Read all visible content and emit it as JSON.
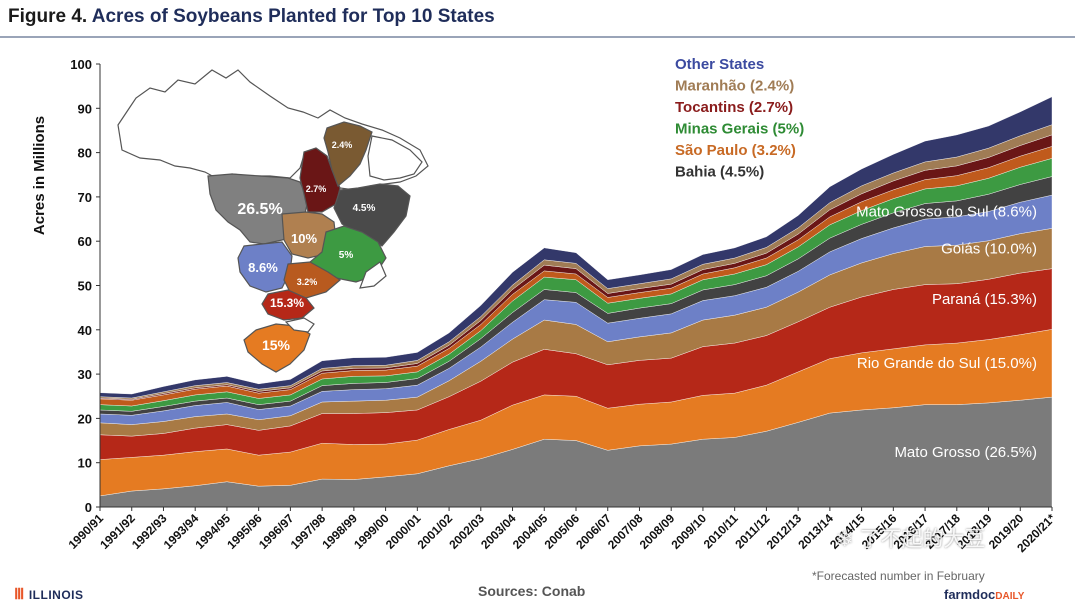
{
  "header": {
    "figure_number": "Figure 4.",
    "title": "Acres of Soybeans Planted for Top 10 States"
  },
  "footer": {
    "university": "ILLINOIS",
    "sources": "Sources: Conab",
    "forecast_note": "*Forecasted number in February",
    "brand_main": "farmdoc",
    "brand_sub": "DAILY"
  },
  "watermark": "了不起的大豆",
  "chart_data": {
    "type": "area",
    "stacked": true,
    "title": "Acres of Soybeans Planted for Top 10 States",
    "xlabel": "",
    "ylabel": "Acres in Millions",
    "ylim": [
      0,
      100
    ],
    "yticks": [
      0,
      10,
      20,
      30,
      40,
      50,
      60,
      70,
      80,
      90,
      100
    ],
    "grid": false,
    "categories": [
      "1990/91",
      "1991/92",
      "1992/93",
      "1993/94",
      "1994/95",
      "1995/96",
      "1996/97",
      "1997/98",
      "1998/99",
      "1999/00",
      "2000/01",
      "2001/02",
      "2002/03",
      "2003/04",
      "2004/05",
      "2005/06",
      "2006/07",
      "2007/08",
      "2008/09",
      "2009/10",
      "2010/11",
      "2011/12",
      "2012/13",
      "2013/14",
      "2014/15",
      "2015/16",
      "2016/17",
      "2017/18",
      "2018/19",
      "2019/20",
      "2020/21*"
    ],
    "series": [
      {
        "name": "Mato Grosso",
        "label": "Mato Grosso  (26.5%)",
        "color": "#7b7b7b",
        "values": [
          2.5,
          3.6,
          4.1,
          4.8,
          5.7,
          4.7,
          4.9,
          6.3,
          6.2,
          6.8,
          7.5,
          9.3,
          10.9,
          13.0,
          15.3,
          15.0,
          12.8,
          13.8,
          14.2,
          15.3,
          15.7,
          17.1,
          19.1,
          21.2,
          21.9,
          22.4,
          23.1,
          23.1,
          23.5,
          24.1,
          24.8
        ]
      },
      {
        "name": "Rio Grande do Sul",
        "label": "Rio Grande do Sul (15.0%)",
        "color": "#e57b22",
        "values": [
          8.2,
          7.6,
          7.6,
          7.7,
          7.4,
          7.0,
          7.5,
          8.1,
          7.9,
          7.4,
          7.6,
          8.2,
          8.7,
          10.0,
          10.0,
          10.0,
          9.5,
          9.4,
          9.5,
          9.9,
          10.0,
          10.4,
          11.4,
          12.3,
          12.9,
          13.3,
          13.5,
          13.9,
          14.3,
          14.8,
          15.3
        ]
      },
      {
        "name": "Paraná",
        "label": "Paraná (15.3%)",
        "color": "#b52818",
        "values": [
          5.6,
          4.8,
          4.9,
          5.3,
          5.5,
          5.6,
          5.9,
          6.7,
          7.0,
          7.1,
          6.8,
          7.4,
          8.8,
          9.7,
          10.3,
          9.6,
          9.8,
          9.9,
          9.9,
          11.0,
          11.3,
          11.2,
          11.3,
          11.6,
          12.6,
          13.4,
          13.6,
          13.4,
          13.6,
          13.9,
          13.7
        ]
      },
      {
        "name": "Goiás",
        "label": "Goiás  (10.0%)",
        "color": "#a87a45",
        "values": [
          2.7,
          2.6,
          2.7,
          2.6,
          2.4,
          2.4,
          2.3,
          2.6,
          2.8,
          2.8,
          2.9,
          3.6,
          4.5,
          5.2,
          6.6,
          6.6,
          5.2,
          5.3,
          5.7,
          6.0,
          6.3,
          6.4,
          6.7,
          7.3,
          7.7,
          8.1,
          8.6,
          8.7,
          8.7,
          8.9,
          9.1
        ]
      },
      {
        "name": "Mato Grosso do Sul",
        "label": "Mato Grosso  do Sul (8.6%)",
        "color": "#6d80c7",
        "values": [
          2.0,
          2.1,
          2.4,
          2.5,
          2.6,
          2.3,
          2.2,
          2.4,
          2.6,
          2.6,
          2.7,
          2.8,
          3.2,
          3.8,
          4.6,
          5.0,
          4.2,
          4.2,
          4.3,
          4.4,
          4.4,
          4.5,
          4.7,
          5.2,
          5.5,
          5.8,
          6.2,
          6.4,
          6.6,
          7.1,
          7.5
        ]
      },
      {
        "name": "Bahia",
        "label": "Bahia (4.5%)",
        "color": "#424242",
        "values": [
          0.9,
          0.9,
          1.0,
          1.0,
          1.0,
          1.1,
          1.1,
          1.3,
          1.4,
          1.4,
          1.5,
          1.6,
          1.9,
          2.2,
          2.3,
          2.2,
          2.2,
          2.3,
          2.3,
          2.4,
          2.5,
          2.6,
          2.8,
          3.1,
          3.2,
          3.4,
          3.5,
          3.6,
          3.9,
          4.0,
          4.2
        ]
      },
      {
        "name": "Minas Gerais",
        "label": "Minas Gerais (5%)",
        "color": "#3d9a42",
        "values": [
          1.2,
          1.2,
          1.3,
          1.4,
          1.4,
          1.4,
          1.4,
          1.5,
          1.6,
          1.5,
          1.5,
          1.6,
          1.8,
          2.6,
          2.8,
          2.9,
          2.3,
          2.2,
          2.2,
          2.3,
          2.4,
          2.5,
          2.7,
          3.0,
          3.1,
          3.2,
          3.3,
          3.4,
          3.6,
          3.9,
          4.1
        ]
      },
      {
        "name": "São Paulo",
        "label": "São Paulo (3.2%)",
        "color": "#c05a1c",
        "values": [
          1.3,
          1.3,
          1.3,
          1.3,
          1.3,
          1.2,
          1.2,
          1.3,
          1.3,
          1.3,
          1.3,
          1.3,
          1.4,
          1.5,
          1.4,
          1.3,
          1.3,
          1.3,
          1.3,
          1.3,
          1.4,
          1.5,
          1.6,
          1.8,
          2.0,
          2.0,
          2.1,
          2.3,
          2.4,
          2.5,
          2.7
        ]
      },
      {
        "name": "Tocantins",
        "label": "Tocantins (2.7%)",
        "color": "#6a1616",
        "values": [
          0.2,
          0.2,
          0.3,
          0.3,
          0.3,
          0.4,
          0.4,
          0.5,
          0.5,
          0.5,
          0.6,
          0.7,
          0.9,
          1.1,
          1.3,
          1.2,
          0.9,
          0.9,
          0.9,
          1.0,
          1.0,
          1.1,
          1.3,
          1.6,
          1.8,
          2.0,
          2.1,
          2.2,
          2.3,
          2.4,
          2.6
        ]
      },
      {
        "name": "Maranhão",
        "label": "Maranhão (2.4%)",
        "color": "#a07c55",
        "values": [
          0.3,
          0.3,
          0.4,
          0.5,
          0.5,
          0.5,
          0.5,
          0.6,
          0.6,
          0.6,
          0.7,
          0.8,
          0.9,
          1.0,
          1.2,
          1.2,
          1.1,
          1.1,
          1.2,
          1.2,
          1.2,
          1.3,
          1.4,
          1.6,
          1.8,
          1.8,
          1.9,
          2.0,
          2.1,
          2.2,
          2.3
        ]
      },
      {
        "name": "Other States",
        "label": "Other States",
        "color": "#33386a",
        "values": [
          0.9,
          0.9,
          1.2,
          1.3,
          1.4,
          1.2,
          1.4,
          1.7,
          1.8,
          1.8,
          1.8,
          2.0,
          2.5,
          2.9,
          2.7,
          2.4,
          2.0,
          2.0,
          2.1,
          2.2,
          2.3,
          2.4,
          2.8,
          3.6,
          3.8,
          4.2,
          4.7,
          5.0,
          5.0,
          5.4,
          6.3
        ]
      }
    ],
    "legend": [
      {
        "label": "Other States",
        "color": "#3b4aa0"
      },
      {
        "label": "Maranhão (2.4%)",
        "color": "#a07c55"
      },
      {
        "label": "Tocantins (2.7%)",
        "color": "#8a1c1c"
      },
      {
        "label": "Minas Gerais (5%)",
        "color": "#2e8b34"
      },
      {
        "label": "São Paulo (3.2%)",
        "color": "#c86a25"
      },
      {
        "label": "Bahia (4.5%)",
        "color": "#333333"
      }
    ],
    "map_labels": [
      "26.5%",
      "2.4%",
      "2.7%",
      "4.5%",
      "10%",
      "5%",
      "8.6%",
      "3.2%",
      "15.3%",
      "15%"
    ]
  }
}
